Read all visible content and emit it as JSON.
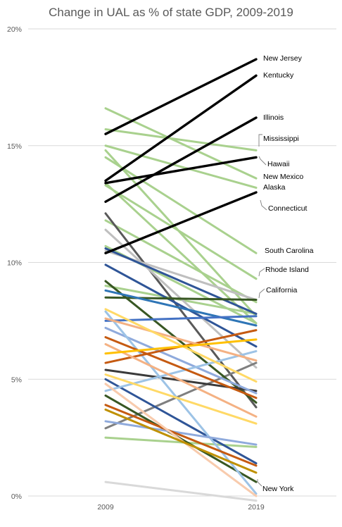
{
  "chart_data": {
    "type": "line",
    "title": "Change in UAL as % of state GDP, 2009-2019",
    "xlabel": "",
    "ylabel": "",
    "categories": [
      "2009",
      "2019"
    ],
    "ylim": [
      0,
      20
    ],
    "yticks": [
      {
        "value": 0,
        "label": "0%"
      },
      {
        "value": 5,
        "label": "5%"
      },
      {
        "value": 10,
        "label": "10%"
      },
      {
        "value": 15,
        "label": "15%"
      },
      {
        "value": 20,
        "label": "20%"
      }
    ],
    "grid": true,
    "legend": "none",
    "series": [
      {
        "name": "New Jersey",
        "values": [
          15.5,
          18.7
        ],
        "color": "#000000"
      },
      {
        "name": "Kentucky",
        "values": [
          13.5,
          18.0
        ],
        "color": "#000000"
      },
      {
        "name": "Illinois",
        "values": [
          12.6,
          16.2
        ],
        "color": "#000000"
      },
      {
        "name": "Hawaii",
        "values": [
          13.4,
          14.5
        ],
        "color": "#000000"
      },
      {
        "name": "Connecticut",
        "values": [
          10.4,
          13.0
        ],
        "color": "#000000"
      },
      {
        "name": "Mississippi",
        "values": [
          15.7,
          14.8
        ],
        "color": "#a9d18e"
      },
      {
        "name": "New Mexico",
        "values": [
          16.6,
          13.6
        ],
        "color": "#a9d18e"
      },
      {
        "name": "Alaska",
        "values": [
          15.0,
          13.2
        ],
        "color": "#a9d18e"
      },
      {
        "name": "South Carolina",
        "values": [
          14.5,
          10.4
        ],
        "color": "#a9d18e"
      },
      {
        "name": "Rhode Island",
        "values": [
          13.3,
          9.3
        ],
        "color": "#a9d18e"
      },
      {
        "name": "California",
        "values": [
          11.8,
          8.3
        ],
        "color": "#a9d18e"
      },
      {
        "name": "New York",
        "values": [
          2.5,
          2.1
        ],
        "color": "#a9d18e"
      },
      {
        "name": "",
        "values": [
          14.8,
          7.7
        ],
        "color": "#a9d18e"
      },
      {
        "name": "",
        "values": [
          13.4,
          7.4
        ],
        "color": "#a9d18e"
      },
      {
        "name": "",
        "values": [
          10.7,
          7.4
        ],
        "color": "#a9d18e"
      },
      {
        "name": "",
        "values": [
          9.0,
          7.8
        ],
        "color": "#a9d18e"
      },
      {
        "name": "",
        "values": [
          12.1,
          3.8
        ],
        "color": "#595959"
      },
      {
        "name": "",
        "values": [
          11.4,
          5.5
        ],
        "color": "#bfbfbf"
      },
      {
        "name": "",
        "values": [
          10.5,
          8.4
        ],
        "color": "#bfbfbf"
      },
      {
        "name": "",
        "values": [
          0.6,
          -0.2
        ],
        "color": "#d9d9d9"
      },
      {
        "name": "",
        "values": [
          2.9,
          5.7
        ],
        "color": "#7f7f7f"
      },
      {
        "name": "",
        "values": [
          10.6,
          7.8
        ],
        "color": "#2f5597"
      },
      {
        "name": "",
        "values": [
          9.9,
          6.4
        ],
        "color": "#2f5597"
      },
      {
        "name": "",
        "values": [
          5.0,
          1.4
        ],
        "color": "#2f5597"
      },
      {
        "name": "",
        "values": [
          8.5,
          8.4
        ],
        "color": "#385723"
      },
      {
        "name": "",
        "values": [
          9.2,
          4.0
        ],
        "color": "#385723"
      },
      {
        "name": "",
        "values": [
          4.3,
          0.6
        ],
        "color": "#385723"
      },
      {
        "name": "",
        "values": [
          5.4,
          4.5
        ],
        "color": "#3a3a3a"
      },
      {
        "name": "",
        "values": [
          8.8,
          7.3
        ],
        "color": "#2e75b6"
      },
      {
        "name": "",
        "values": [
          7.5,
          7.7
        ],
        "color": "#4472c4"
      },
      {
        "name": "",
        "values": [
          7.2,
          4.4
        ],
        "color": "#8faadc"
      },
      {
        "name": "",
        "values": [
          7.9,
          0.1
        ],
        "color": "#9dc3e6"
      },
      {
        "name": "",
        "values": [
          4.5,
          6.2
        ],
        "color": "#9dc3e6"
      },
      {
        "name": "",
        "values": [
          3.2,
          2.2
        ],
        "color": "#8faadc"
      },
      {
        "name": "",
        "values": [
          6.8,
          4.2
        ],
        "color": "#c55a11"
      },
      {
        "name": "",
        "values": [
          5.7,
          7.1
        ],
        "color": "#c55a11"
      },
      {
        "name": "",
        "values": [
          3.9,
          1.3
        ],
        "color": "#c55a11"
      },
      {
        "name": "",
        "values": [
          6.5,
          3.4
        ],
        "color": "#f4b183"
      },
      {
        "name": "",
        "values": [
          4.8,
          0.0
        ],
        "color": "#f8cbad"
      },
      {
        "name": "",
        "values": [
          7.6,
          5.8
        ],
        "color": "#f4b183"
      },
      {
        "name": "",
        "values": [
          8.0,
          4.9
        ],
        "color": "#ffd966"
      },
      {
        "name": "",
        "values": [
          5.2,
          3.1
        ],
        "color": "#ffd966"
      },
      {
        "name": "",
        "values": [
          6.1,
          6.7
        ],
        "color": "#ffc000"
      },
      {
        "name": "",
        "values": [
          3.7,
          1.0
        ],
        "color": "#bf9000"
      }
    ]
  }
}
